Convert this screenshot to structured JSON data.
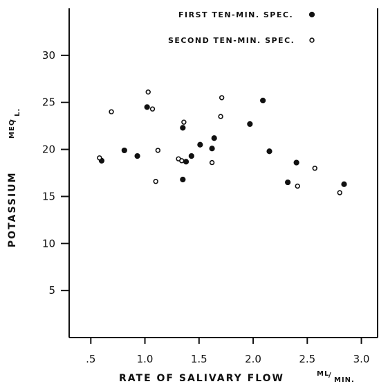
{
  "chart_data": {
    "type": "scatter",
    "title": "",
    "xlabel": "RATE OF SALIVARY FLOW",
    "xunit": "ML/MIN.",
    "xunit_num": "ML",
    "xunit_den": "MIN.",
    "ylabel": "POTASSIUM",
    "yunit": "MEQ/L.",
    "yunit_num": "MEQ",
    "yunit_den": "L.",
    "xlim": [
      0.3,
      3.15
    ],
    "ylim": [
      0,
      35
    ],
    "x_ticks": [
      0.5,
      1.0,
      1.5,
      2.0,
      2.5,
      3.0
    ],
    "x_tick_labels": [
      ".5",
      "1.0",
      "1.5",
      "2.0",
      "2.5",
      "3.0"
    ],
    "y_ticks": [
      5,
      10,
      15,
      20,
      25,
      30
    ],
    "y_tick_labels": [
      "5",
      "10",
      "15",
      "20",
      "25",
      "30"
    ],
    "grid": false,
    "legend_position": "top-right",
    "series": [
      {
        "name": "FIRST TEN-MIN. SPEC.",
        "marker": "filled-circle",
        "points": [
          {
            "x": 0.6,
            "y": 18.8
          },
          {
            "x": 0.81,
            "y": 19.9
          },
          {
            "x": 0.93,
            "y": 19.3
          },
          {
            "x": 1.02,
            "y": 24.5
          },
          {
            "x": 1.35,
            "y": 22.3
          },
          {
            "x": 1.35,
            "y": 16.8
          },
          {
            "x": 1.38,
            "y": 18.7
          },
          {
            "x": 1.43,
            "y": 19.3
          },
          {
            "x": 1.51,
            "y": 20.5
          },
          {
            "x": 1.62,
            "y": 20.1
          },
          {
            "x": 1.64,
            "y": 21.2
          },
          {
            "x": 1.97,
            "y": 22.7
          },
          {
            "x": 2.09,
            "y": 25.2
          },
          {
            "x": 2.15,
            "y": 19.8
          },
          {
            "x": 2.32,
            "y": 16.5
          },
          {
            "x": 2.4,
            "y": 18.6
          },
          {
            "x": 2.84,
            "y": 16.3
          }
        ]
      },
      {
        "name": "SECOND TEN-MIN. SPEC.",
        "marker": "open-circle",
        "points": [
          {
            "x": 0.58,
            "y": 19.1
          },
          {
            "x": 0.69,
            "y": 24.0
          },
          {
            "x": 1.03,
            "y": 26.1
          },
          {
            "x": 1.07,
            "y": 24.3
          },
          {
            "x": 1.1,
            "y": 16.6
          },
          {
            "x": 1.12,
            "y": 19.9
          },
          {
            "x": 1.31,
            "y": 19.0
          },
          {
            "x": 1.34,
            "y": 18.8
          },
          {
            "x": 1.36,
            "y": 22.9
          },
          {
            "x": 1.62,
            "y": 18.6
          },
          {
            "x": 1.7,
            "y": 23.5
          },
          {
            "x": 1.71,
            "y": 25.5
          },
          {
            "x": 2.41,
            "y": 16.1
          },
          {
            "x": 2.57,
            "y": 18.0
          },
          {
            "x": 2.8,
            "y": 15.4
          }
        ]
      }
    ]
  }
}
